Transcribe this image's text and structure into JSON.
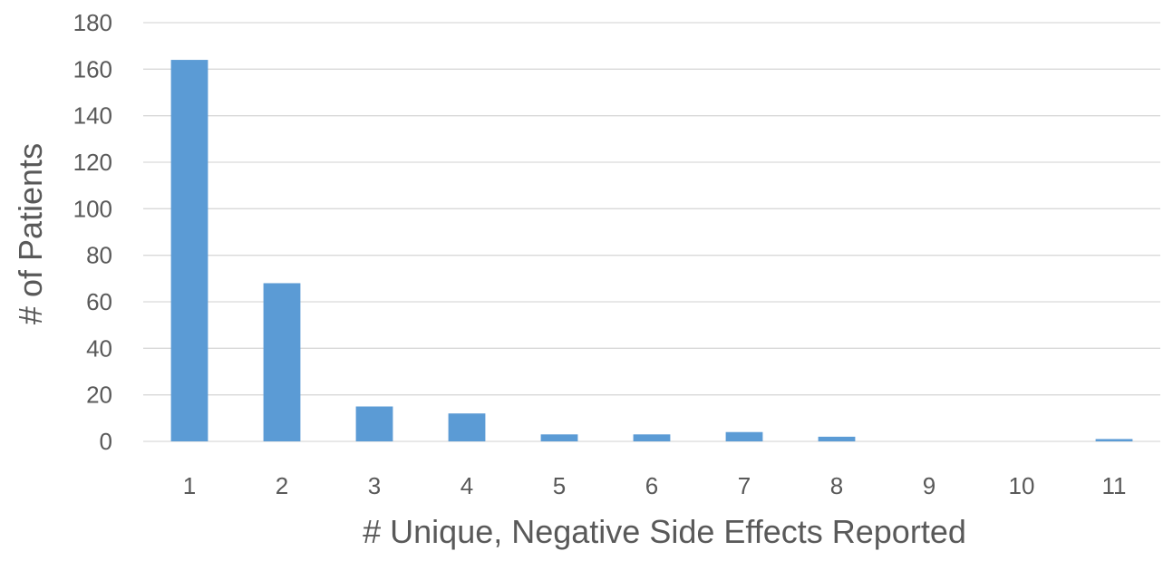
{
  "chart_data": {
    "type": "bar",
    "categories": [
      "1",
      "2",
      "3",
      "4",
      "5",
      "6",
      "7",
      "8",
      "9",
      "10",
      "11"
    ],
    "values": [
      164,
      68,
      15,
      12,
      3,
      3,
      4,
      2,
      0,
      0,
      1
    ],
    "title": "",
    "xlabel": "# Unique, Negative Side Effects Reported",
    "ylabel": "# of Patients",
    "ylim": [
      0,
      180
    ],
    "yticks": [
      0,
      20,
      40,
      60,
      80,
      100,
      120,
      140,
      160,
      180
    ],
    "grid": true,
    "legend": "none",
    "colors": {
      "bar": "#5b9bd5",
      "grid": "#d9d9d9",
      "text": "#595959"
    }
  }
}
